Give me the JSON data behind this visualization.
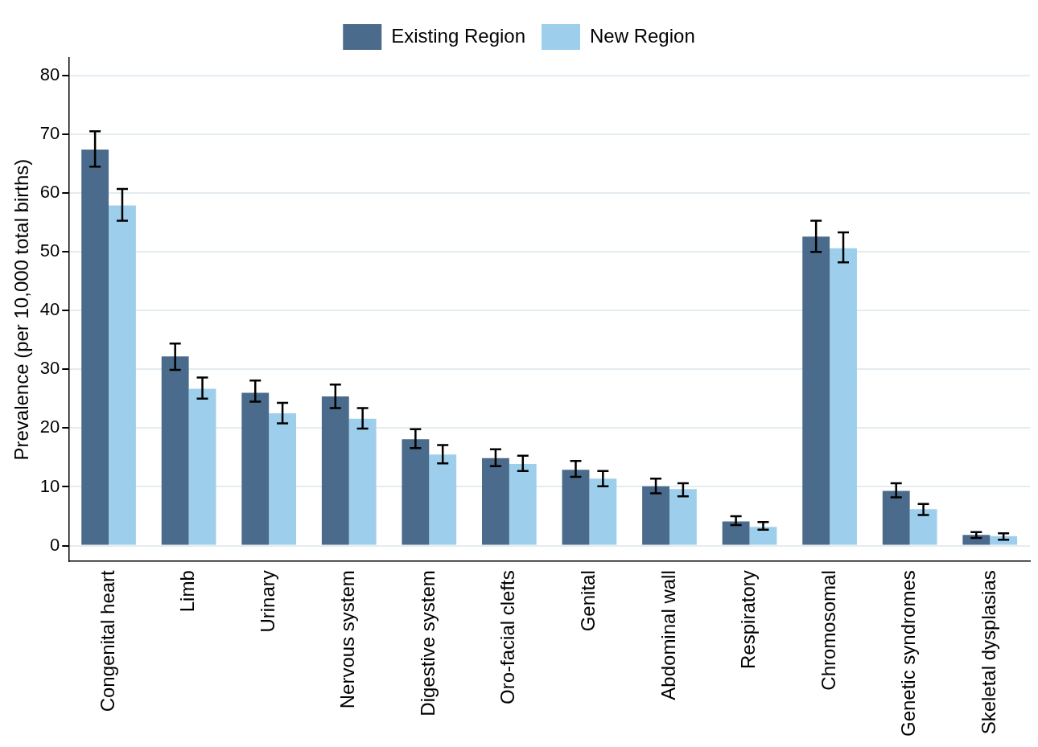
{
  "chart_data": {
    "type": "bar",
    "ylabel": "Prevalence (per 10,000 total births)",
    "categories": [
      "Congenital heart",
      "Limb",
      "Urinary",
      "Nervous system",
      "Digestive system",
      "Oro-facial clefts",
      "Genital",
      "Abdominal wall",
      "Respiratory",
      "Chromosomal",
      "Genetic syndromes",
      "Skeletal dysplasias"
    ],
    "series": [
      {
        "name": "Existing Region",
        "color": "#4a6b8c",
        "values": [
          67.4,
          32.2,
          26.0,
          25.4,
          18.1,
          14.9,
          12.9,
          10.1,
          4.1,
          52.6,
          9.3,
          1.8
        ],
        "errors": [
          [
            64.5,
            70.5
          ],
          [
            29.9,
            34.4
          ],
          [
            24.5,
            28.1
          ],
          [
            23.4,
            27.4
          ],
          [
            16.6,
            19.8
          ],
          [
            13.5,
            16.4
          ],
          [
            11.7,
            14.4
          ],
          [
            8.9,
            11.4
          ],
          [
            3.5,
            5.0
          ],
          [
            50.0,
            55.3
          ],
          [
            8.2,
            10.6
          ],
          [
            1.3,
            2.3
          ]
        ]
      },
      {
        "name": "New Region",
        "color": "#9dcfec",
        "values": [
          57.9,
          26.7,
          22.5,
          21.6,
          15.5,
          13.9,
          11.4,
          9.6,
          3.2,
          50.6,
          6.2,
          1.6
        ],
        "errors": [
          [
            55.3,
            60.7
          ],
          [
            25.0,
            28.6
          ],
          [
            20.8,
            24.3
          ],
          [
            19.9,
            23.4
          ],
          [
            14.0,
            17.1
          ],
          [
            12.7,
            15.3
          ],
          [
            10.1,
            12.7
          ],
          [
            8.4,
            10.6
          ],
          [
            2.7,
            4.0
          ],
          [
            48.2,
            53.3
          ],
          [
            5.2,
            7.1
          ],
          [
            1.0,
            2.1
          ]
        ]
      }
    ],
    "ylim": [
      -2.7,
      83
    ],
    "yticks": [
      0,
      10,
      20,
      30,
      40,
      50,
      60,
      70,
      80
    ],
    "grid": "y",
    "legend": "top"
  }
}
